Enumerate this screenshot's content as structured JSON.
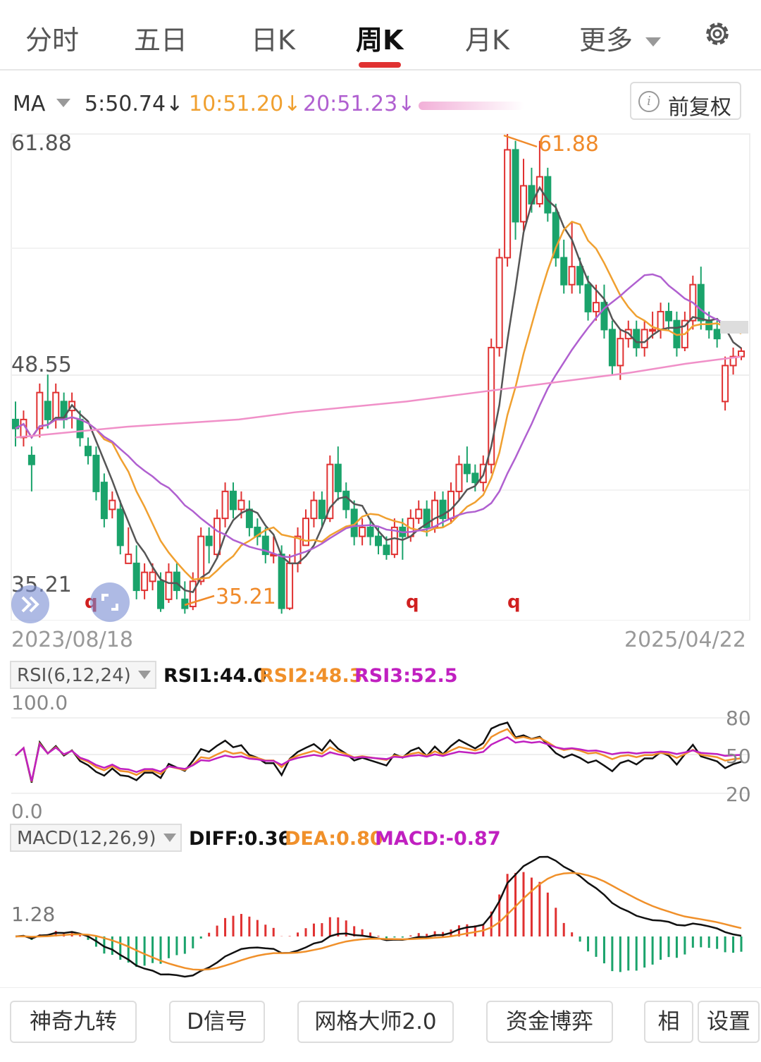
{
  "tabs": [
    "分时",
    "五日",
    "日K",
    "周K",
    "月K",
    "更多"
  ],
  "ma": {
    "label": "MA",
    "ma5": "5:50.74↓",
    "ma10": "10:51.20↓",
    "ma20": "20:51.23↓",
    "adjust": "前复权"
  },
  "colors": {
    "up": "#e03131",
    "down": "#1aa36b",
    "ma5": "#555555",
    "ma10": "#f0a030",
    "ma20": "#b060d0",
    "ma60": "#f090c8",
    "rsi1": "#111111",
    "rsi2": "#f0902a",
    "rsi3": "#c020c0"
  },
  "price_axis": {
    "top": "61.88",
    "mid": "48.55",
    "bottom": "35.21"
  },
  "dates": {
    "start": "2023/08/18",
    "end": "2025/04/22"
  },
  "markers": {
    "high_label": "61.88",
    "low_label": "35.21",
    "q": "q"
  },
  "rsi": {
    "title": "RSI(6,12,24)",
    "v1": "RSI1:44.0",
    "v2": "RSI2:48.3",
    "v3": "RSI3:52.5",
    "top": "100.0",
    "bottom": "0.0",
    "r80": "80",
    "r50": "50",
    "r20": "20"
  },
  "macd": {
    "title": "MACD(12,26,9)",
    "diff": "DIFF:0.36",
    "dea": "DEA:0.80",
    "macd": "MACD:-0.87",
    "level": "1.28"
  },
  "buttons": [
    "神奇九转",
    "D信号",
    "网格大师2.0",
    "资金博弈",
    "相",
    "设置"
  ],
  "chart_data": {
    "type": "candlestick",
    "ylim": [
      35.21,
      61.88
    ],
    "candles": [
      [
        46,
        45.5,
        47,
        44.5
      ],
      [
        45,
        46,
        46.5,
        44.5
      ],
      [
        44,
        43.5,
        44.5,
        42
      ],
      [
        45.5,
        47.5,
        48,
        45
      ],
      [
        47,
        46,
        48.5,
        45.5
      ],
      [
        46,
        47.5,
        48,
        45.5
      ],
      [
        47,
        46,
        47.5,
        45.5
      ],
      [
        46.5,
        47,
        47.5,
        45.5
      ],
      [
        46,
        45,
        46.5,
        44.5
      ],
      [
        44.5,
        44,
        45,
        43.5
      ],
      [
        44,
        42,
        44.5,
        41.5
      ],
      [
        42.5,
        40.5,
        43,
        40
      ],
      [
        41,
        41.5,
        42,
        40.5
      ],
      [
        41,
        39,
        41.5,
        38.5
      ],
      [
        38,
        38.5,
        40,
        38
      ],
      [
        38,
        36.5,
        39,
        36
      ],
      [
        36.5,
        37.5,
        38,
        36
      ],
      [
        37,
        37.5,
        38,
        36.5
      ],
      [
        37,
        35.5,
        37.5,
        35.3
      ],
      [
        36,
        37.5,
        38,
        35.8
      ],
      [
        37.5,
        36.5,
        38,
        36
      ],
      [
        36,
        35.5,
        37,
        35.2
      ],
      [
        35.6,
        37,
        37.5,
        35.4
      ],
      [
        37,
        39.5,
        40,
        36.8
      ],
      [
        39.5,
        39,
        40,
        38
      ],
      [
        38.5,
        40.5,
        41,
        38.3
      ],
      [
        40.5,
        42,
        42.5,
        40
      ],
      [
        42,
        41,
        42.5,
        40.5
      ],
      [
        41,
        41.5,
        42,
        40.5
      ],
      [
        41,
        40,
        41.5,
        39.5
      ],
      [
        40,
        39.5,
        40.5,
        39
      ],
      [
        39.5,
        38.5,
        40,
        38
      ],
      [
        38.5,
        38.5,
        39.5,
        38
      ],
      [
        38.5,
        35.5,
        39,
        35.2
      ],
      [
        35.5,
        38,
        38.5,
        35.4
      ],
      [
        38,
        39.5,
        40,
        37.5
      ],
      [
        39,
        40.5,
        41,
        39
      ],
      [
        40.5,
        41.5,
        42,
        40
      ],
      [
        41.5,
        40.5,
        42,
        40
      ],
      [
        40.5,
        43.5,
        44,
        40.3
      ],
      [
        43.5,
        42,
        44.5,
        41.5
      ],
      [
        42,
        41,
        42.5,
        40.5
      ],
      [
        41,
        39.5,
        41.5,
        39
      ],
      [
        39.5,
        40,
        40.5,
        39
      ],
      [
        40,
        39.5,
        40.5,
        39
      ],
      [
        39.5,
        39,
        40,
        38.5
      ],
      [
        39,
        38.5,
        39.5,
        38.2
      ],
      [
        38.5,
        40,
        40.5,
        38.3
      ],
      [
        40,
        39.5,
        40.5,
        38.2
      ],
      [
        39.5,
        40.5,
        41,
        39.2
      ],
      [
        40.5,
        41,
        41.5,
        40.2
      ],
      [
        41,
        40,
        41.5,
        39.5
      ],
      [
        40,
        41.5,
        42,
        39.7
      ],
      [
        41.5,
        40.5,
        42,
        40
      ],
      [
        40.5,
        42,
        42.5,
        40.2
      ],
      [
        42,
        43.5,
        44,
        41.5
      ],
      [
        43.5,
        43,
        44.5,
        42.5
      ],
      [
        43,
        42.5,
        43.5,
        42
      ],
      [
        42.5,
        43.5,
        44,
        42
      ],
      [
        43.5,
        50,
        50.5,
        43
      ],
      [
        50,
        55,
        55.5,
        49.5
      ],
      [
        55,
        61,
        61.88,
        54.5
      ],
      [
        61,
        57,
        61.5,
        56
      ],
      [
        57,
        59,
        60.5,
        56.5
      ],
      [
        59,
        58,
        60,
        57.5
      ],
      [
        58,
        59.5,
        61.5,
        57.8
      ],
      [
        59.5,
        57.5,
        60,
        57
      ],
      [
        57.5,
        55,
        58,
        54.5
      ],
      [
        55,
        53.5,
        56,
        53
      ],
      [
        53.5,
        54.5,
        57,
        53
      ],
      [
        54.5,
        53.5,
        55,
        53
      ],
      [
        53.5,
        52,
        54,
        51.5
      ],
      [
        52,
        52.5,
        53.5,
        51.5
      ],
      [
        52.5,
        51,
        53.5,
        50.5
      ],
      [
        51,
        49,
        51.5,
        48.5
      ],
      [
        49,
        50.5,
        51,
        48.2
      ],
      [
        50.5,
        51,
        51.5,
        50
      ],
      [
        51,
        50,
        51.5,
        49.5
      ],
      [
        50,
        51,
        51.5,
        49.5
      ],
      [
        51,
        51,
        52,
        50.5
      ],
      [
        51,
        52,
        52.5,
        50.5
      ],
      [
        52,
        51.5,
        52.5,
        51
      ],
      [
        51.5,
        50,
        52,
        49.5
      ],
      [
        50,
        51.5,
        52,
        49.8
      ],
      [
        51.5,
        53.5,
        54,
        51
      ],
      [
        53.5,
        51.5,
        54.5,
        51
      ],
      [
        51.5,
        51,
        52,
        50.5
      ],
      [
        51,
        50.5,
        51.5,
        50
      ],
      [
        47,
        49,
        49.5,
        46.5
      ],
      [
        49,
        49.5,
        50,
        48.5
      ],
      [
        49.5,
        49.8,
        50,
        49.3
      ]
    ],
    "ma60": [
      45,
      45.3,
      45.6,
      45.8,
      46,
      46.4,
      46.7,
      47,
      47.4,
      47.8,
      48.2,
      48.6,
      49.1,
      49.5
    ]
  }
}
